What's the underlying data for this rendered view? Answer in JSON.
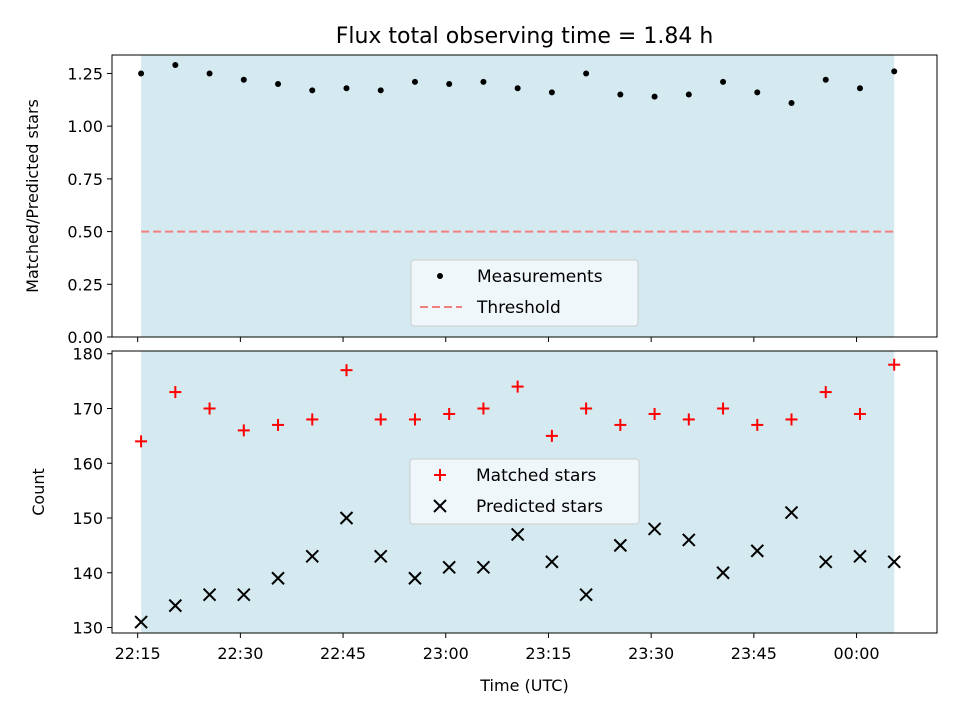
{
  "chart_data": [
    {
      "type": "scatter",
      "title": "Flux total observing time = 1.84 h",
      "xlabel": "",
      "ylabel": "Matched/Predicted stars",
      "ylim": [
        0,
        1.3375
      ],
      "yticks": [
        0.0,
        0.25,
        0.5,
        0.75,
        1.0,
        1.25
      ],
      "ytick_labels": [
        "0.00",
        "0.25",
        "0.50",
        "0.75",
        "1.00",
        "1.25"
      ],
      "x_minutes": [
        16,
        26,
        36,
        46,
        56,
        66,
        76,
        86,
        96,
        106,
        116,
        126,
        136,
        146,
        156,
        166,
        176,
        186,
        196,
        206,
        216,
        226,
        236
      ],
      "series": [
        {
          "name": "Measurements",
          "marker": "dot",
          "color": "#000000",
          "values": [
            1.25,
            1.29,
            1.25,
            1.22,
            1.2,
            1.17,
            1.18,
            1.17,
            1.21,
            1.2,
            1.21,
            1.18,
            1.16,
            1.25,
            1.15,
            1.14,
            1.15,
            1.21,
            1.16,
            1.11,
            1.22,
            1.18,
            1.26
          ]
        },
        {
          "name": "Threshold",
          "marker": "dashed-line",
          "color": "#f08080",
          "value": 0.5
        }
      ],
      "shaded_range_minutes": [
        16,
        236
      ],
      "shade_color": "#d4eaf0",
      "legend": "lower-center"
    },
    {
      "type": "scatter",
      "title": "",
      "xlabel": "Time (UTC)",
      "ylabel": "Count",
      "ylim": [
        129,
        180.5
      ],
      "yticks": [
        130,
        140,
        150,
        160,
        170,
        180
      ],
      "ytick_labels": [
        "130",
        "140",
        "150",
        "160",
        "170",
        "180"
      ],
      "xlim_minutes": [
        7.5,
        248.5
      ],
      "xticks_minutes": [
        15,
        45,
        75,
        105,
        135,
        165,
        195,
        225
      ],
      "xtick_labels": [
        "22:15",
        "22:30",
        "22:45",
        "23:00",
        "23:15",
        "23:30",
        "23:45",
        "00:00"
      ],
      "x_minutes": [
        16,
        26,
        36,
        46,
        56,
        66,
        76,
        86,
        96,
        106,
        116,
        126,
        136,
        146,
        156,
        166,
        176,
        186,
        196,
        206,
        216,
        226,
        236
      ],
      "series": [
        {
          "name": "Matched stars",
          "marker": "plus",
          "color": "#ff0000",
          "values": [
            164,
            173,
            170,
            166,
            167,
            168,
            177,
            168,
            168,
            169,
            170,
            174,
            165,
            170,
            167,
            169,
            168,
            170,
            167,
            168,
            173,
            169,
            178
          ]
        },
        {
          "name": "Predicted stars",
          "marker": "x",
          "color": "#000000",
          "values": [
            131,
            134,
            136,
            136,
            139,
            143,
            150,
            143,
            139,
            141,
            141,
            147,
            142,
            136,
            145,
            148,
            146,
            140,
            144,
            151,
            142,
            143,
            142
          ]
        }
      ],
      "shaded_range_minutes": [
        16,
        236
      ],
      "shade_color": "#d4eaf0",
      "legend": "center"
    }
  ]
}
